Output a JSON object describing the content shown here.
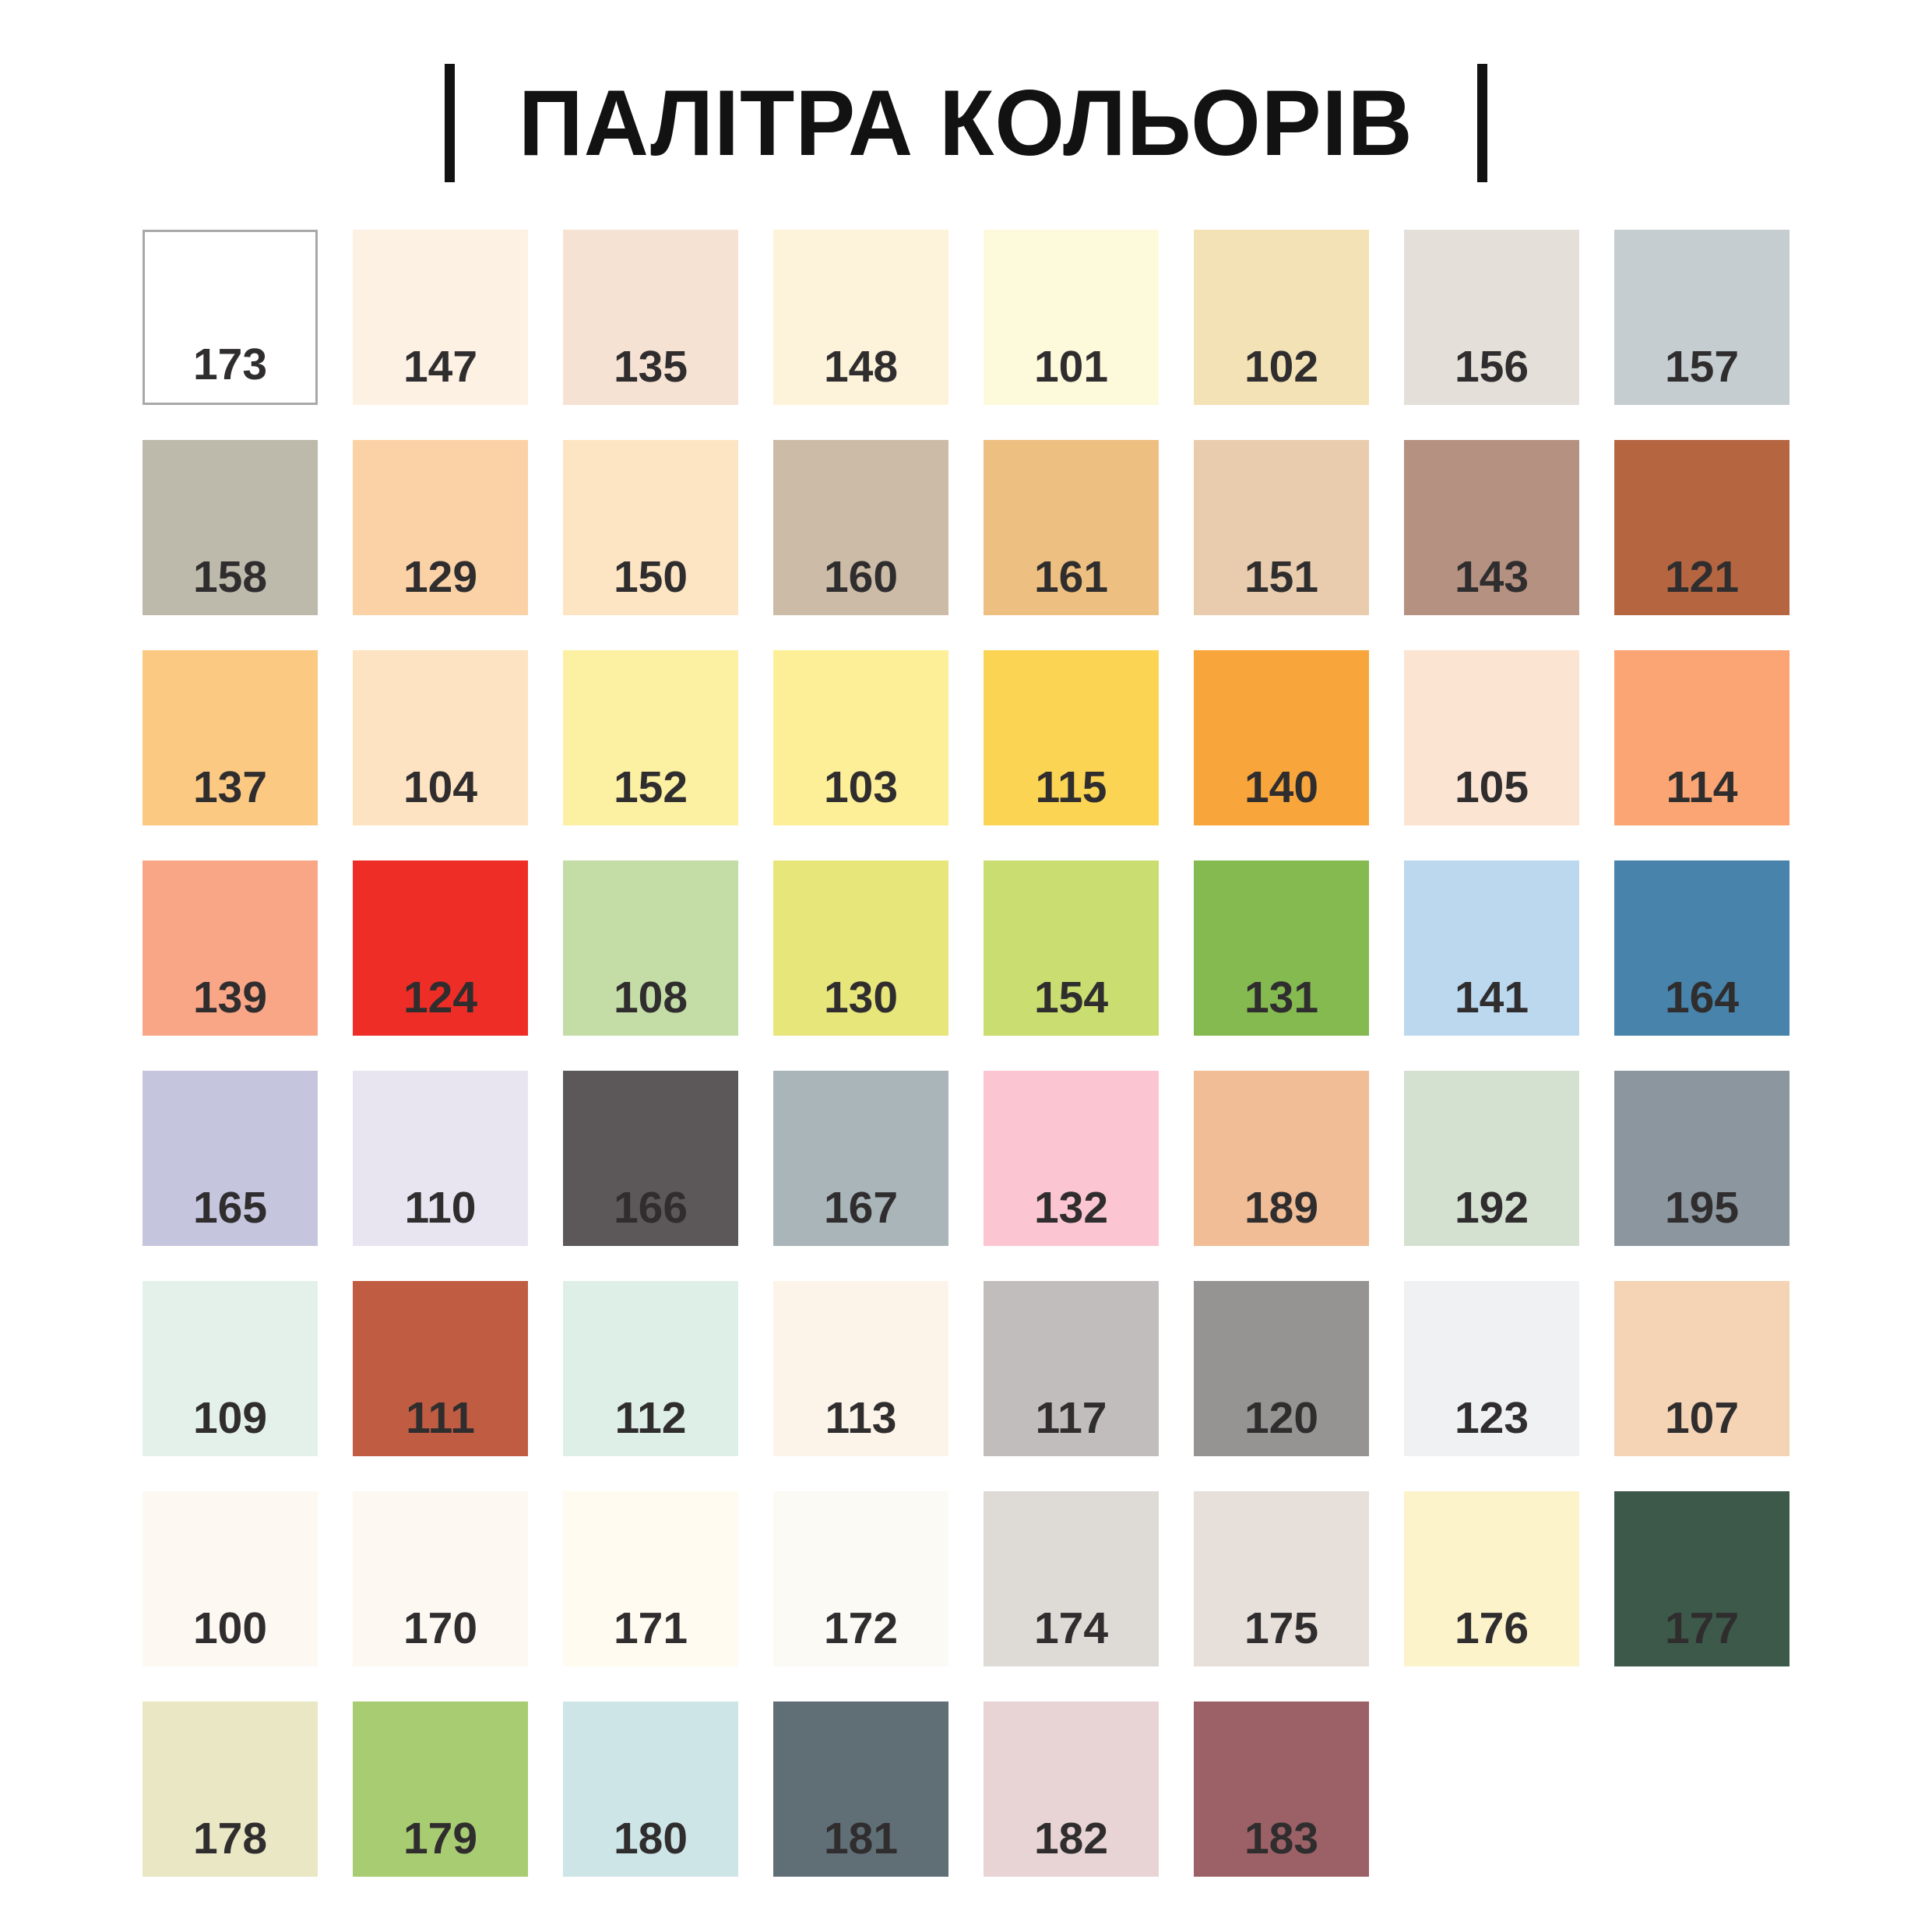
{
  "page": {
    "title": "ПАЛІТРА КОЛЬОРІВ",
    "background": "#ffffff",
    "title_color": "#121212",
    "swatch_label_color": "#2f2d2e"
  },
  "chart_data": {
    "type": "table",
    "title": "ПАЛІТРА КОЛЬОРІВ",
    "layout": "grid of color swatches, 8 columns, 8 rows (last row has 6 swatches)",
    "columns": [
      "code",
      "hex"
    ],
    "rows": [
      {
        "code": "173",
        "hex": "#ffffff",
        "border": "#a8a8a8"
      },
      {
        "code": "147",
        "hex": "#fdf1e4"
      },
      {
        "code": "135",
        "hex": "#f6e2d2"
      },
      {
        "code": "148",
        "hex": "#fdf3da"
      },
      {
        "code": "101",
        "hex": "#fdf9db"
      },
      {
        "code": "102",
        "hex": "#f3e2b5"
      },
      {
        "code": "156",
        "hex": "#e4e0d9"
      },
      {
        "code": "157",
        "hex": "#c5cdd0"
      },
      {
        "code": "158",
        "hex": "#bdb9ab"
      },
      {
        "code": "129",
        "hex": "#fbd2a6"
      },
      {
        "code": "150",
        "hex": "#fde5c3"
      },
      {
        "code": "160",
        "hex": "#ccbca7"
      },
      {
        "code": "161",
        "hex": "#edbf81"
      },
      {
        "code": "151",
        "hex": "#e9ccae"
      },
      {
        "code": "143",
        "hex": "#b49181"
      },
      {
        "code": "121",
        "hex": "#b56641"
      },
      {
        "code": "137",
        "hex": "#fbc982"
      },
      {
        "code": "104",
        "hex": "#fde3c1"
      },
      {
        "code": "152",
        "hex": "#fcf0a3"
      },
      {
        "code": "103",
        "hex": "#fcef97"
      },
      {
        "code": "115",
        "hex": "#fcd454"
      },
      {
        "code": "140",
        "hex": "#f8a63b"
      },
      {
        "code": "105",
        "hex": "#fce4d3"
      },
      {
        "code": "114",
        "hex": "#faa573"
      },
      {
        "code": "139",
        "hex": "#f9a687"
      },
      {
        "code": "124",
        "hex": "#ee2d26"
      },
      {
        "code": "108",
        "hex": "#c4dca5"
      },
      {
        "code": "130",
        "hex": "#e7e67b"
      },
      {
        "code": "154",
        "hex": "#cadd70"
      },
      {
        "code": "131",
        "hex": "#85ba51"
      },
      {
        "code": "141",
        "hex": "#bbd8ee"
      },
      {
        "code": "164",
        "hex": "#4783aa"
      },
      {
        "code": "165",
        "hex": "#c6c5de"
      },
      {
        "code": "110",
        "hex": "#e8e5f0"
      },
      {
        "code": "166",
        "hex": "#5c5859"
      },
      {
        "code": "167",
        "hex": "#a9b5b9"
      },
      {
        "code": "132",
        "hex": "#fbc6d1"
      },
      {
        "code": "189",
        "hex": "#f0bd96"
      },
      {
        "code": "192",
        "hex": "#d5e1d0"
      },
      {
        "code": "195",
        "hex": "#8c969f"
      },
      {
        "code": "109",
        "hex": "#e4f1ea"
      },
      {
        "code": "111",
        "hex": "#c05c42"
      },
      {
        "code": "112",
        "hex": "#deefe7"
      },
      {
        "code": "113",
        "hex": "#fdf4e9"
      },
      {
        "code": "117",
        "hex": "#c1bdbd"
      },
      {
        "code": "120",
        "hex": "#969493"
      },
      {
        "code": "123",
        "hex": "#f0f1f3"
      },
      {
        "code": "107",
        "hex": "#f5d3b5"
      },
      {
        "code": "100",
        "hex": "#fdf8f2"
      },
      {
        "code": "170",
        "hex": "#fdf8f1"
      },
      {
        "code": "171",
        "hex": "#fffbf0"
      },
      {
        "code": "172",
        "hex": "#fcfaf5"
      },
      {
        "code": "174",
        "hex": "#dedad6"
      },
      {
        "code": "175",
        "hex": "#e6dfda"
      },
      {
        "code": "176",
        "hex": "#fcf3cb"
      },
      {
        "code": "177",
        "hex": "#3d5949"
      },
      {
        "code": "178",
        "hex": "#eae7c5"
      },
      {
        "code": "179",
        "hex": "#a7cc71"
      },
      {
        "code": "180",
        "hex": "#cde5e7"
      },
      {
        "code": "181",
        "hex": "#606e76"
      },
      {
        "code": "182",
        "hex": "#e9d4d5"
      },
      {
        "code": "183",
        "hex": "#9c6166"
      }
    ]
  }
}
